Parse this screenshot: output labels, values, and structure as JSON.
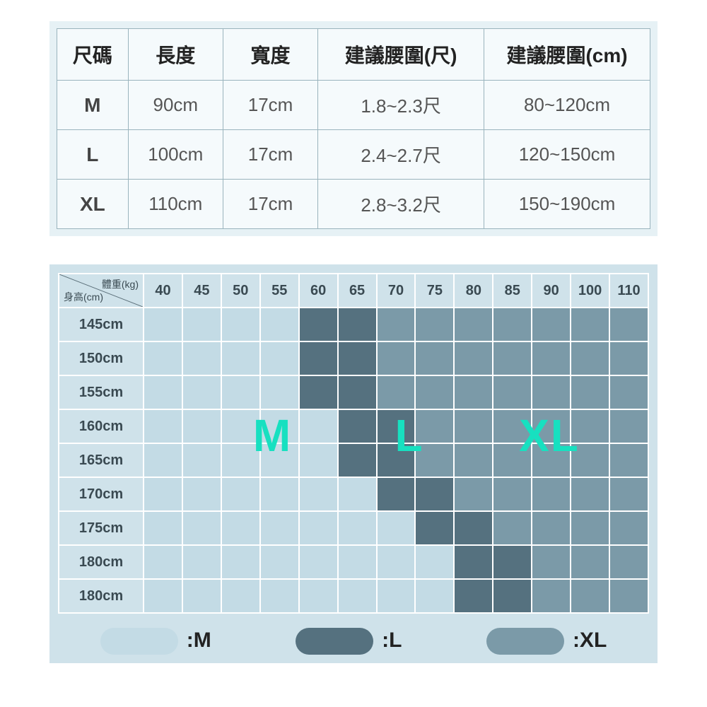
{
  "spec": {
    "headers": [
      "尺碼",
      "長度",
      "寬度",
      "建議腰圍(尺)",
      "建議腰圍(cm)"
    ],
    "rows": [
      [
        "M",
        "90cm",
        "17cm",
        "1.8~2.3尺",
        "80~120cm"
      ],
      [
        "L",
        "100cm",
        "17cm",
        "2.4~2.7尺",
        "120~150cm"
      ],
      [
        "XL",
        "110cm",
        "17cm",
        "2.8~3.2尺",
        "150~190cm"
      ]
    ],
    "col_widths_pct": [
      12,
      16,
      16,
      28,
      28
    ],
    "header_color": "#222",
    "cell_color": "#555",
    "border_color": "#9ab4bd",
    "bg": "#f5fafc",
    "outer_bg": "#e6f1f5"
  },
  "matrix": {
    "corner_top": "體重(kg)",
    "corner_left": "身高(cm)",
    "weights": [
      "40",
      "45",
      "50",
      "55",
      "60",
      "65",
      "70",
      "75",
      "80",
      "85",
      "90",
      "100",
      "110"
    ],
    "heights": [
      "145cm",
      "150cm",
      "155cm",
      "160cm",
      "165cm",
      "170cm",
      "175cm",
      "180cm",
      "180cm"
    ],
    "cells": [
      [
        "M",
        "M",
        "M",
        "M",
        "L",
        "L",
        "XL",
        "XL",
        "XL",
        "XL",
        "XL",
        "XL",
        "XL"
      ],
      [
        "M",
        "M",
        "M",
        "M",
        "L",
        "L",
        "XL",
        "XL",
        "XL",
        "XL",
        "XL",
        "XL",
        "XL"
      ],
      [
        "M",
        "M",
        "M",
        "M",
        "L",
        "L",
        "XL",
        "XL",
        "XL",
        "XL",
        "XL",
        "XL",
        "XL"
      ],
      [
        "M",
        "M",
        "M",
        "M",
        "M",
        "L",
        "L",
        "XL",
        "XL",
        "XL",
        "XL",
        "XL",
        "XL"
      ],
      [
        "M",
        "M",
        "M",
        "M",
        "M",
        "L",
        "L",
        "XL",
        "XL",
        "XL",
        "XL",
        "XL",
        "XL"
      ],
      [
        "M",
        "M",
        "M",
        "M",
        "M",
        "M",
        "L",
        "L",
        "XL",
        "XL",
        "XL",
        "XL",
        "XL"
      ],
      [
        "M",
        "M",
        "M",
        "M",
        "M",
        "M",
        "M",
        "L",
        "L",
        "XL",
        "XL",
        "XL",
        "XL"
      ],
      [
        "M",
        "M",
        "M",
        "M",
        "M",
        "M",
        "M",
        "M",
        "L",
        "L",
        "XL",
        "XL",
        "XL"
      ],
      [
        "M",
        "M",
        "M",
        "M",
        "M",
        "M",
        "M",
        "M",
        "L",
        "L",
        "XL",
        "XL",
        "XL"
      ]
    ],
    "colors": {
      "M": "#c3dbe5",
      "L": "#55717f",
      "XL": "#7b9aa8"
    },
    "grid_border": "#ffffff",
    "outer_bg": "#cfe2ea",
    "overlays": [
      {
        "text": "M",
        "left_pct": 33,
        "top_pct": 40
      },
      {
        "text": "L",
        "left_pct": 57,
        "top_pct": 40
      },
      {
        "text": "XL",
        "left_pct": 78,
        "top_pct": 40
      }
    ],
    "overlay_color": "#17e0c0",
    "overlay_fontsize": 64
  },
  "legend": {
    "items": [
      {
        "size": "M",
        "label": ":M"
      },
      {
        "size": "L",
        "label": ":L"
      },
      {
        "size": "XL",
        "label": ":XL"
      }
    ]
  }
}
